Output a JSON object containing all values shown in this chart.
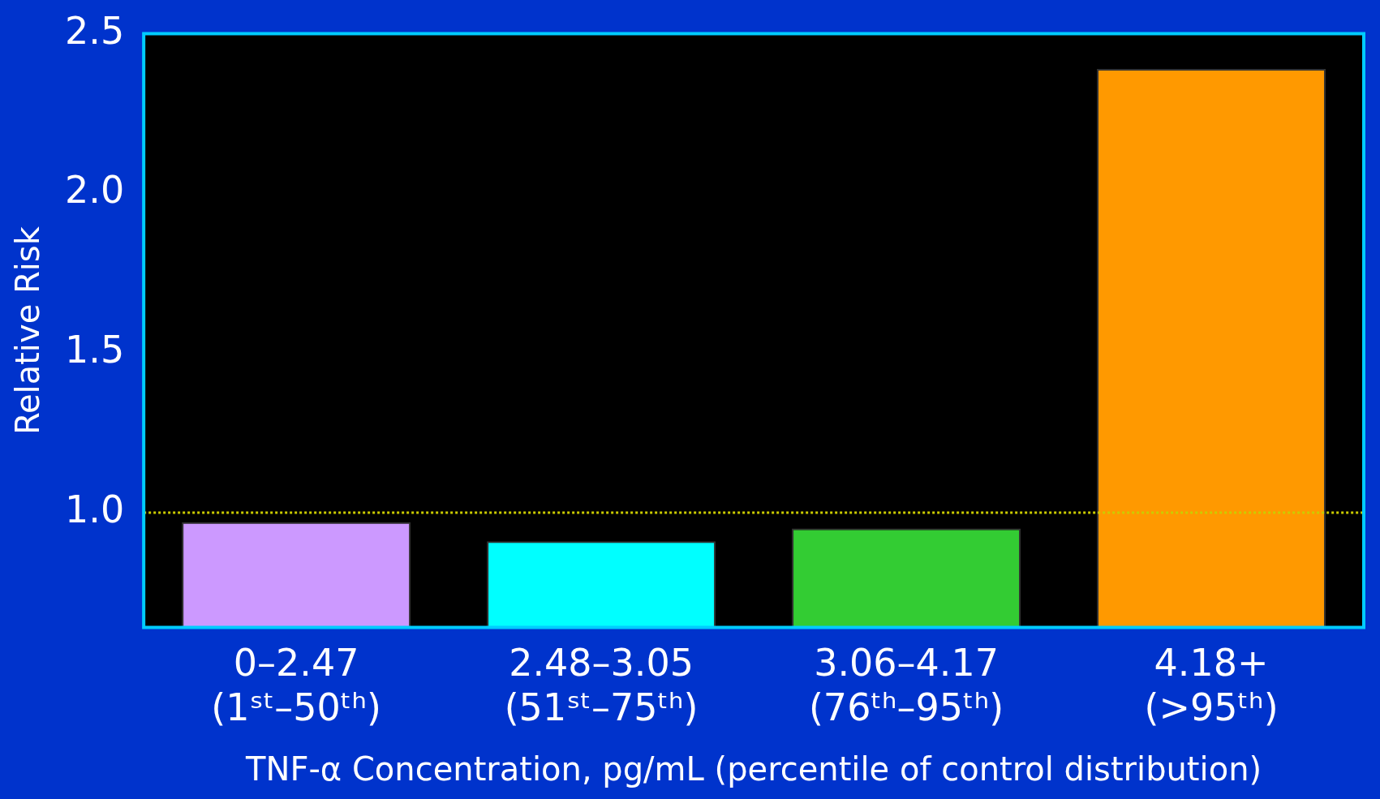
{
  "chart_data": {
    "type": "bar",
    "xlabel": "TNF-α Concentration, pg/mL (percentile of control distribution)",
    "ylabel": "Relative Risk",
    "categories": [
      "0–2.47\n(1ˢᵗ–50ᵗʰ)",
      "2.48–3.05\n(51ˢᵗ–75ᵗʰ)",
      "3.06–4.17\n(76ᵗʰ–95ᵗʰ)",
      "4.18+\n(>95ᵗʰ)"
    ],
    "values": [
      0.97,
      0.91,
      0.95,
      2.39
    ],
    "colors": [
      "#cc99ff",
      "#00ffff",
      "#33cc33",
      "#ff9900"
    ],
    "ylim": [
      0.64,
      2.5
    ],
    "yticks": [
      {
        "value": 1,
        "label": "1.0"
      },
      {
        "value": 1.5,
        "label": "1.5"
      },
      {
        "value": 2,
        "label": "2.0"
      },
      {
        "value": 2.5,
        "label": "2.5"
      }
    ],
    "ref_lines": [
      {
        "axis": "y",
        "value": 1,
        "color": "#cccc00",
        "line_style": "dotted"
      }
    ],
    "grid": false,
    "legend": false
  }
}
